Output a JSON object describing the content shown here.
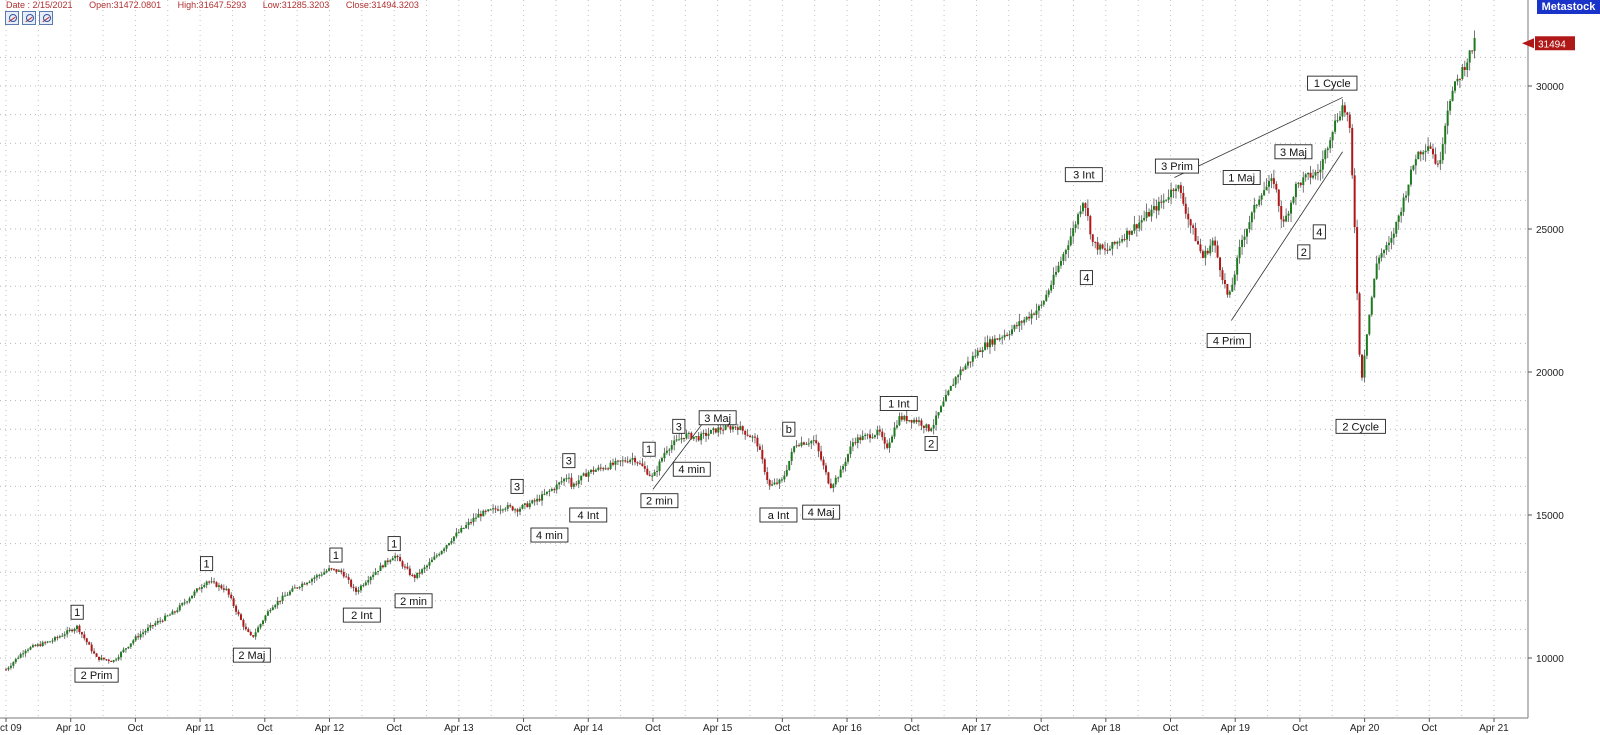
{
  "header": {
    "date": "Date : 2/15/2021",
    "open": "Open:31472.0801",
    "high": "High:31647.5293",
    "low": "Low:31285.3203",
    "close": "Close:31494.3203"
  },
  "brand": "Metastock",
  "toolbar_icons": [
    "chart-zoom-icon",
    "chart-zoom-out-icon",
    "chart-fit-icon"
  ],
  "chart_data": {
    "type": "line",
    "ylim": [
      9500,
      32500
    ],
    "y_ticks": [
      10000,
      15000,
      20000,
      25000,
      30000
    ],
    "y_tick_labels": [
      "10000",
      "15000",
      "20000",
      "25000",
      "30000"
    ],
    "last_value_label": "31494",
    "grid": true,
    "x_ticks": [
      {
        "t": 2009.75,
        "label": "ct 09"
      },
      {
        "t": 2010.25,
        "label": "Apr 10"
      },
      {
        "t": 2010.75,
        "label": "Oct"
      },
      {
        "t": 2011.25,
        "label": "Apr 11"
      },
      {
        "t": 2011.75,
        "label": "Oct"
      },
      {
        "t": 2012.25,
        "label": "Apr 12"
      },
      {
        "t": 2012.75,
        "label": "Oct"
      },
      {
        "t": 2013.25,
        "label": "Apr 13"
      },
      {
        "t": 2013.75,
        "label": "Oct"
      },
      {
        "t": 2014.25,
        "label": "Apr 14"
      },
      {
        "t": 2014.75,
        "label": "Oct"
      },
      {
        "t": 2015.25,
        "label": "Apr 15"
      },
      {
        "t": 2015.75,
        "label": "Oct"
      },
      {
        "t": 2016.25,
        "label": "Apr 16"
      },
      {
        "t": 2016.75,
        "label": "Oct"
      },
      {
        "t": 2017.25,
        "label": "Apr 17"
      },
      {
        "t": 2017.75,
        "label": "Oct"
      },
      {
        "t": 2018.25,
        "label": "Apr 18"
      },
      {
        "t": 2018.75,
        "label": "Oct"
      },
      {
        "t": 2019.25,
        "label": "Apr 19"
      },
      {
        "t": 2019.75,
        "label": "Oct"
      },
      {
        "t": 2020.25,
        "label": "Apr 20"
      },
      {
        "t": 2020.75,
        "label": "Oct"
      },
      {
        "t": 2021.25,
        "label": "Apr 21"
      }
    ],
    "series": [
      {
        "points": [
          [
            2009.75,
            9600
          ],
          [
            2009.9,
            10300
          ],
          [
            2010.1,
            10600
          ],
          [
            2010.3,
            11100
          ],
          [
            2010.45,
            10000
          ],
          [
            2010.58,
            9900
          ],
          [
            2010.75,
            10700
          ],
          [
            2010.9,
            11200
          ],
          [
            2011.05,
            11600
          ],
          [
            2011.3,
            12700
          ],
          [
            2011.45,
            12400
          ],
          [
            2011.6,
            11000
          ],
          [
            2011.65,
            10700
          ],
          [
            2011.8,
            11800
          ],
          [
            2012.0,
            12500
          ],
          [
            2012.25,
            13100
          ],
          [
            2012.35,
            13000
          ],
          [
            2012.45,
            12300
          ],
          [
            2012.55,
            12800
          ],
          [
            2012.75,
            13600
          ],
          [
            2012.9,
            12800
          ],
          [
            2013.0,
            13200
          ],
          [
            2013.2,
            14200
          ],
          [
            2013.4,
            15000
          ],
          [
            2013.6,
            15300
          ],
          [
            2013.7,
            15200
          ],
          [
            2013.85,
            15500
          ],
          [
            2014.0,
            16000
          ],
          [
            2014.1,
            16400
          ],
          [
            2014.12,
            16000
          ],
          [
            2014.25,
            16500
          ],
          [
            2014.4,
            16700
          ],
          [
            2014.6,
            17000
          ],
          [
            2014.75,
            16300
          ],
          [
            2014.85,
            17300
          ],
          [
            2015.0,
            17800
          ],
          [
            2015.1,
            17700
          ],
          [
            2015.25,
            18000
          ],
          [
            2015.4,
            18100
          ],
          [
            2015.55,
            17600
          ],
          [
            2015.65,
            16000
          ],
          [
            2015.75,
            16200
          ],
          [
            2015.85,
            17500
          ],
          [
            2016.0,
            17600
          ],
          [
            2016.12,
            16000
          ],
          [
            2016.2,
            16500
          ],
          [
            2016.3,
            17600
          ],
          [
            2016.5,
            17900
          ],
          [
            2016.55,
            17300
          ],
          [
            2016.65,
            18400
          ],
          [
            2016.8,
            18300
          ],
          [
            2016.88,
            18000
          ],
          [
            2016.92,
            18200
          ],
          [
            2017.1,
            19900
          ],
          [
            2017.3,
            20900
          ],
          [
            2017.5,
            21400
          ],
          [
            2017.75,
            22300
          ],
          [
            2017.85,
            23300
          ],
          [
            2018.0,
            25000
          ],
          [
            2018.08,
            26100
          ],
          [
            2018.15,
            24500
          ],
          [
            2018.25,
            24200
          ],
          [
            2018.45,
            25000
          ],
          [
            2018.7,
            26000
          ],
          [
            2018.8,
            26600
          ],
          [
            2018.9,
            25200
          ],
          [
            2019.0,
            24000
          ],
          [
            2019.08,
            24600
          ],
          [
            2019.2,
            22500
          ],
          [
            2019.3,
            24600
          ],
          [
            2019.45,
            26300
          ],
          [
            2019.55,
            26700
          ],
          [
            2019.62,
            25100
          ],
          [
            2019.72,
            26500
          ],
          [
            2019.8,
            26800
          ],
          [
            2019.9,
            27000
          ],
          [
            2020.0,
            28500
          ],
          [
            2020.08,
            29300
          ],
          [
            2020.13,
            28800
          ],
          [
            2020.17,
            25500
          ],
          [
            2020.22,
            19500
          ],
          [
            2020.27,
            21500
          ],
          [
            2020.35,
            24000
          ],
          [
            2020.45,
            24500
          ],
          [
            2020.55,
            26000
          ],
          [
            2020.65,
            27600
          ],
          [
            2020.75,
            28000
          ],
          [
            2020.82,
            27100
          ],
          [
            2020.9,
            29500
          ],
          [
            2021.0,
            30500
          ],
          [
            2021.1,
            31494
          ]
        ]
      }
    ],
    "trendlines": [
      {
        "from": [
          2014.75,
          15900
        ],
        "to": [
          2015.15,
          18300
        ]
      },
      {
        "from": [
          2018.78,
          26800
        ],
        "to": [
          2020.08,
          29600
        ]
      },
      {
        "from": [
          2019.22,
          21800
        ],
        "to": [
          2020.08,
          27700
        ]
      }
    ],
    "annotations": [
      {
        "text": "1",
        "t": 2010.3,
        "y": 11600
      },
      {
        "text": "2 Prim",
        "t": 2010.45,
        "y": 9400
      },
      {
        "text": "1",
        "t": 2011.3,
        "y": 13300
      },
      {
        "text": "2 Maj",
        "t": 2011.65,
        "y": 10100
      },
      {
        "text": "1",
        "t": 2012.3,
        "y": 13600
      },
      {
        "text": "2 Int",
        "t": 2012.5,
        "y": 11500
      },
      {
        "text": "1",
        "t": 2012.75,
        "y": 14000
      },
      {
        "text": "2 min",
        "t": 2012.9,
        "y": 12000
      },
      {
        "text": "3",
        "t": 2013.7,
        "y": 16000
      },
      {
        "text": "4 min",
        "t": 2013.95,
        "y": 14300
      },
      {
        "text": "3",
        "t": 2014.1,
        "y": 16900
      },
      {
        "text": "4 Int",
        "t": 2014.25,
        "y": 15000
      },
      {
        "text": "1",
        "t": 2014.72,
        "y": 17300
      },
      {
        "text": "3",
        "t": 2014.95,
        "y": 18100
      },
      {
        "text": "3 Maj",
        "t": 2015.25,
        "y": 18400
      },
      {
        "text": "2 min",
        "t": 2014.8,
        "y": 15500
      },
      {
        "text": "4 min",
        "t": 2015.05,
        "y": 16600
      },
      {
        "text": "b",
        "t": 2015.8,
        "y": 18000
      },
      {
        "text": "a Int",
        "t": 2015.72,
        "y": 15000
      },
      {
        "text": "4 Maj",
        "t": 2016.05,
        "y": 15100
      },
      {
        "text": "1 Int",
        "t": 2016.65,
        "y": 18900
      },
      {
        "text": "2",
        "t": 2016.9,
        "y": 17500
      },
      {
        "text": "3 Int",
        "t": 2018.08,
        "y": 26900
      },
      {
        "text": "4",
        "t": 2018.1,
        "y": 23300
      },
      {
        "text": "3 Prim",
        "t": 2018.8,
        "y": 27200
      },
      {
        "text": "1 Maj",
        "t": 2019.3,
        "y": 26800
      },
      {
        "text": "3 Maj",
        "t": 2019.7,
        "y": 27700
      },
      {
        "text": "4 Prim",
        "t": 2019.2,
        "y": 21100
      },
      {
        "text": "2",
        "t": 2019.78,
        "y": 24200
      },
      {
        "text": "4",
        "t": 2019.9,
        "y": 24900
      },
      {
        "text": "1 Cycle",
        "t": 2020.0,
        "y": 30100
      },
      {
        "text": "2 Cycle",
        "t": 2020.22,
        "y": 18100
      }
    ]
  }
}
